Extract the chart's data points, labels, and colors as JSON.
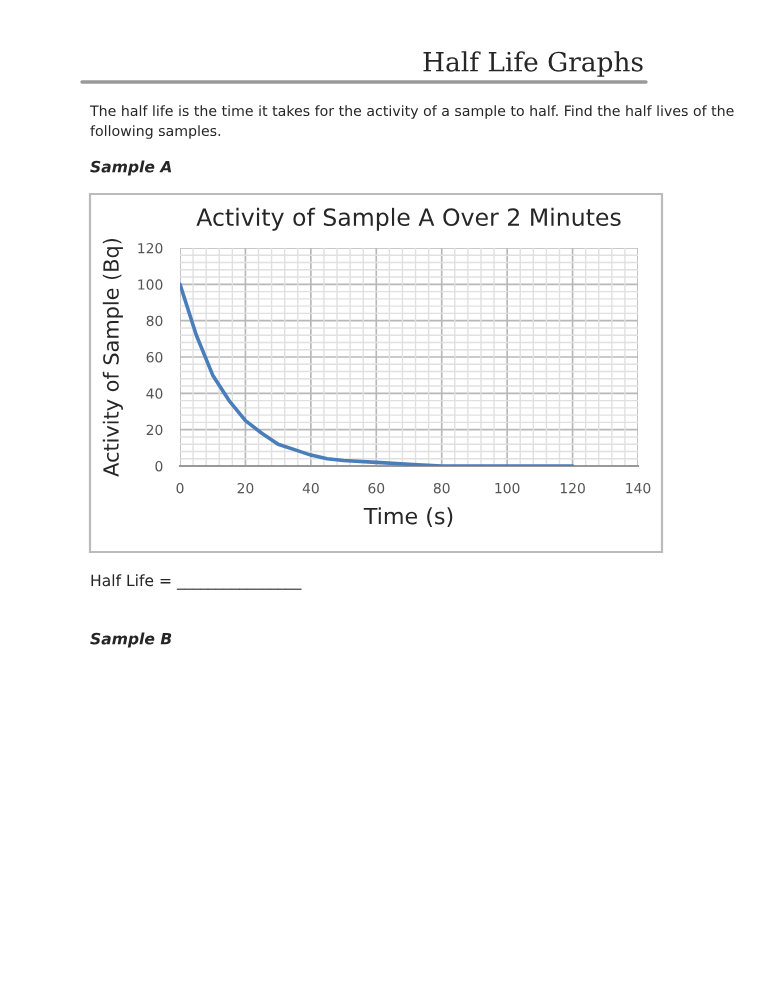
{
  "chart_data": {
    "type": "line",
    "title": "Activity of Sample A Over 2 Minutes",
    "xlabel": "Time (s)",
    "ylabel": "Activity of Sample (Bq)",
    "x": [
      0,
      5,
      10,
      15,
      20,
      25,
      30,
      35,
      40,
      45,
      50,
      60,
      70,
      80,
      90,
      100,
      110,
      120
    ],
    "series": [
      {
        "color": "#4a7ebb",
        "values": [
          100,
          72,
          50,
          36,
          25,
          18,
          12,
          9,
          6,
          4,
          3,
          2,
          1,
          0,
          0,
          0,
          0,
          0
        ]
      }
    ],
    "xlim": [
      0,
      140
    ],
    "xticks": [
      0,
      20,
      40,
      60,
      80,
      100,
      120,
      140
    ],
    "ylim": [
      0,
      120
    ],
    "yticks": [
      0,
      20,
      40,
      60,
      80,
      100,
      120
    ],
    "grid": true,
    "legend": false,
    "marker": "none",
    "line_style": "solid",
    "annotations": [
      "Half Life Graphs",
      "The half life is the time it takes for the activity of a sample to half. Find the half lives of the",
      "following samples.",
      "Sample A",
      "Half Life = ________________",
      "Sample B"
    ]
  }
}
